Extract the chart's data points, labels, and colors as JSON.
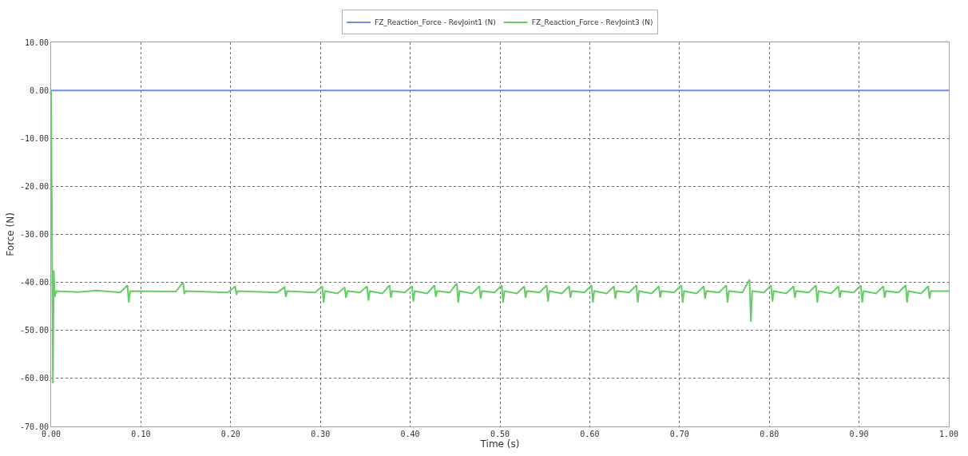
{
  "chart_data": {
    "type": "line",
    "xlabel": "Time (s)",
    "ylabel": "Force (N)",
    "xlim": [
      0,
      1
    ],
    "ylim": [
      -70,
      10
    ],
    "xticks": [
      {
        "value": 0,
        "label": "0.00"
      },
      {
        "value": 0.1,
        "label": "0.10"
      },
      {
        "value": 0.2,
        "label": "0.20"
      },
      {
        "value": 0.3,
        "label": "0.30"
      },
      {
        "value": 0.4,
        "label": "0.40"
      },
      {
        "value": 0.5,
        "label": "0.50"
      },
      {
        "value": 0.6,
        "label": "0.60"
      },
      {
        "value": 0.7,
        "label": "0.70"
      },
      {
        "value": 0.8,
        "label": "0.80"
      },
      {
        "value": 0.9,
        "label": "0.90"
      },
      {
        "value": 1,
        "label": "1.00"
      }
    ],
    "yticks": [
      {
        "value": -70,
        "label": "-70.00"
      },
      {
        "value": -60,
        "label": "-60.00"
      },
      {
        "value": -50,
        "label": "-50.00"
      },
      {
        "value": -40,
        "label": "-40.00"
      },
      {
        "value": -30,
        "label": "-30.00"
      },
      {
        "value": -20,
        "label": "-20.00"
      },
      {
        "value": -10,
        "label": "-10.00"
      },
      {
        "value": 0,
        "label": "0.00"
      },
      {
        "value": 10,
        "label": "10.00"
      }
    ],
    "grid": true,
    "legend": "top",
    "marker": "none",
    "line_style": "solid",
    "series": [
      {
        "name": "FZ_Reaction_Force - RevJoint1 (N)",
        "color": "#6f8fdf",
        "x": [
          0,
          0.25,
          0.5,
          0.75,
          1
        ],
        "values": [
          0,
          0,
          0,
          0,
          0
        ]
      },
      {
        "name": "FZ_Reaction_Force - RevJoint3 (N)",
        "color": "#66cc66",
        "x": [
          0,
          0.002,
          0.003,
          0.004,
          0.006,
          0.03,
          0.05,
          0.077,
          0.085,
          0.0865,
          0.088,
          0.139,
          0.147,
          0.1485,
          0.15,
          0.197,
          0.205,
          0.2065,
          0.208,
          0.252,
          0.26,
          0.2615,
          0.263,
          0.294,
          0.302,
          0.3035,
          0.305,
          0.319,
          0.327,
          0.3285,
          0.33,
          0.344,
          0.352,
          0.3535,
          0.355,
          0.369,
          0.377,
          0.3785,
          0.38,
          0.394,
          0.402,
          0.4035,
          0.405,
          0.419,
          0.427,
          0.4285,
          0.43,
          0.444,
          0.452,
          0.4535,
          0.455,
          0.469,
          0.477,
          0.4785,
          0.48,
          0.494,
          0.502,
          0.5035,
          0.505,
          0.519,
          0.527,
          0.5285,
          0.53,
          0.544,
          0.552,
          0.5535,
          0.555,
          0.569,
          0.577,
          0.5785,
          0.58,
          0.594,
          0.602,
          0.6035,
          0.605,
          0.619,
          0.627,
          0.6285,
          0.63,
          0.644,
          0.652,
          0.6535,
          0.655,
          0.669,
          0.677,
          0.6785,
          0.68,
          0.694,
          0.702,
          0.7035,
          0.705,
          0.719,
          0.727,
          0.7285,
          0.73,
          0.744,
          0.752,
          0.7535,
          0.755,
          0.77,
          0.778,
          0.7795,
          0.781,
          0.794,
          0.802,
          0.8035,
          0.805,
          0.819,
          0.827,
          0.8285,
          0.83,
          0.844,
          0.852,
          0.8535,
          0.855,
          0.869,
          0.877,
          0.8785,
          0.88,
          0.894,
          0.902,
          0.9035,
          0.905,
          0.919,
          0.927,
          0.9285,
          0.93,
          0.944,
          0.952,
          0.9535,
          0.955,
          0.969,
          0.977,
          0.9785,
          0.98,
          1.0
        ],
        "values": [
          0,
          -61,
          -37.5,
          -43,
          -41.8,
          -42,
          -41.7,
          -42.1,
          -40.6,
          -44.2,
          -41.8,
          -41.9,
          -40.0,
          -42.4,
          -41.8,
          -42.1,
          -40.8,
          -42.6,
          -41.8,
          -42.1,
          -41.0,
          -43.0,
          -41.8,
          -42.1,
          -40.8,
          -44.2,
          -41.8,
          -42.3,
          -41.0,
          -43.2,
          -41.8,
          -42.1,
          -40.8,
          -43.8,
          -41.8,
          -42.3,
          -40.6,
          -43.2,
          -41.8,
          -42.1,
          -40.8,
          -44.0,
          -41.8,
          -42.3,
          -40.6,
          -43.0,
          -41.8,
          -42.1,
          -40.2,
          -44.2,
          -41.8,
          -42.3,
          -40.8,
          -43.4,
          -41.8,
          -42.1,
          -40.6,
          -44.2,
          -41.8,
          -42.3,
          -40.8,
          -43.2,
          -41.8,
          -42.1,
          -40.6,
          -44.0,
          -41.8,
          -42.3,
          -40.8,
          -43.2,
          -41.8,
          -42.1,
          -40.6,
          -44.2,
          -41.8,
          -42.3,
          -40.8,
          -43.4,
          -41.8,
          -42.1,
          -40.6,
          -44.2,
          -41.8,
          -42.3,
          -40.8,
          -43.2,
          -41.8,
          -42.1,
          -40.6,
          -44.2,
          -41.8,
          -42.3,
          -40.8,
          -43.4,
          -41.8,
          -42.1,
          -40.6,
          -44.2,
          -41.8,
          -42.1,
          -39.4,
          -48.2,
          -41.8,
          -42.1,
          -40.6,
          -44.0,
          -41.8,
          -42.3,
          -40.8,
          -43.2,
          -41.8,
          -42.1,
          -40.6,
          -44.2,
          -41.8,
          -42.3,
          -40.8,
          -43.2,
          -41.8,
          -42.1,
          -40.6,
          -44.2,
          -41.8,
          -42.3,
          -40.8,
          -43.2,
          -41.8,
          -42.1,
          -40.6,
          -44.2,
          -41.8,
          -42.3,
          -40.8,
          -43.4,
          -41.8,
          -41.8
        ]
      }
    ]
  }
}
